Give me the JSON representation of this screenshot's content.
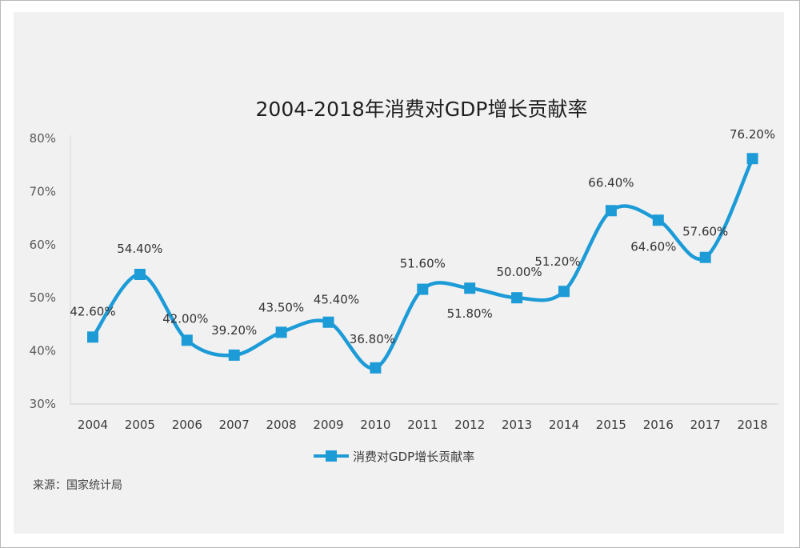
{
  "chart_data": {
    "type": "line",
    "title": "2004-2018年消费对GDP增长贡献率",
    "xlabel": "",
    "ylabel": "",
    "ylim": [
      30,
      80
    ],
    "y_ticks": [
      "30%",
      "40%",
      "50%",
      "60%",
      "70%",
      "80%"
    ],
    "categories": [
      "2004",
      "2005",
      "2006",
      "2007",
      "2008",
      "2009",
      "2010",
      "2011",
      "2012",
      "2013",
      "2014",
      "2015",
      "2016",
      "2017",
      "2018"
    ],
    "series": [
      {
        "name": "消费对GDP增长贡献率",
        "values": [
          42.6,
          54.4,
          42.0,
          39.2,
          43.5,
          45.4,
          36.8,
          51.6,
          51.8,
          50.0,
          51.2,
          66.4,
          64.6,
          57.6,
          76.2
        ],
        "labels": [
          "42.60%",
          "54.40%",
          "42.00%",
          "39.20%",
          "43.50%",
          "45.40%",
          "36.80%",
          "51.60%",
          "51.80%",
          "50.00%",
          "51.20%",
          "66.40%",
          "64.60%",
          "57.60%",
          "76.20%"
        ],
        "color": "#1d9bd7"
      }
    ],
    "grid": false,
    "legend_position": "bottom"
  },
  "source_text": "来源：国家统计局"
}
